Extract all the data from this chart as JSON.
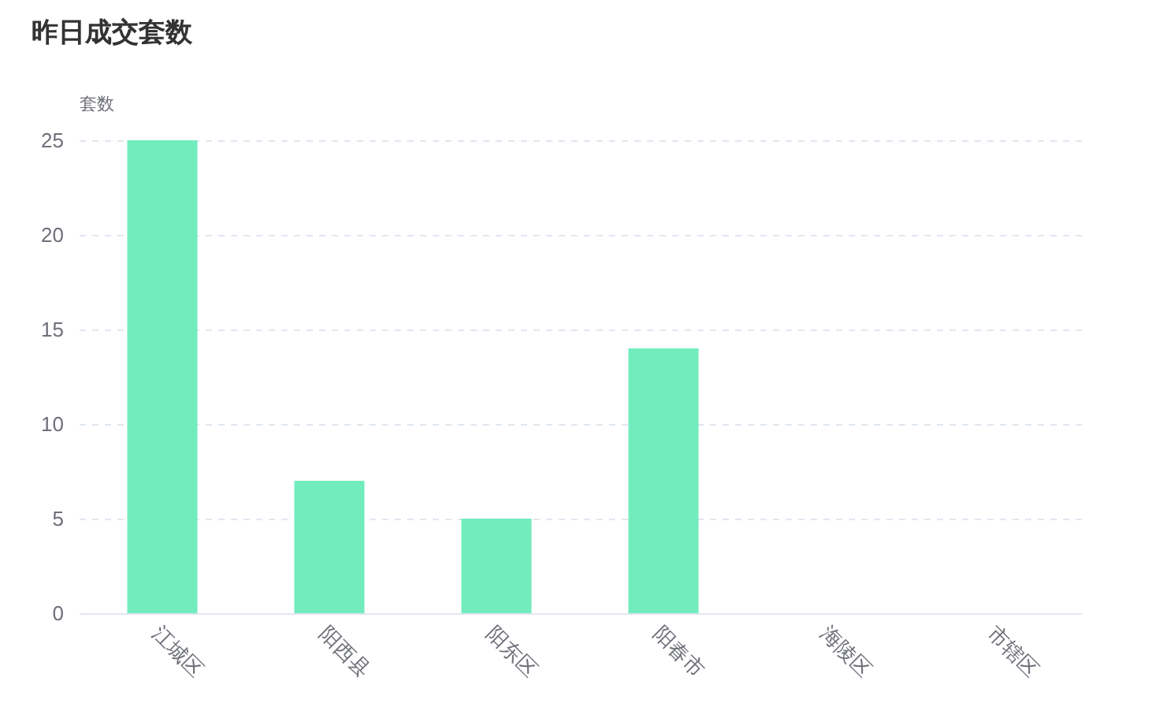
{
  "chart_data": {
    "type": "bar",
    "title": "昨日成交套数",
    "ylabel": "套数",
    "categories": [
      "江城区",
      "阳西县",
      "阳东区",
      "阳春市",
      "海陵区",
      "市辖区"
    ],
    "values": [
      25,
      7,
      5,
      14,
      0,
      0
    ],
    "color": "#72ecbd",
    "ylim": [
      0,
      25
    ],
    "yticks": [
      0,
      5,
      10,
      15,
      20,
      25
    ],
    "grid": "y"
  }
}
